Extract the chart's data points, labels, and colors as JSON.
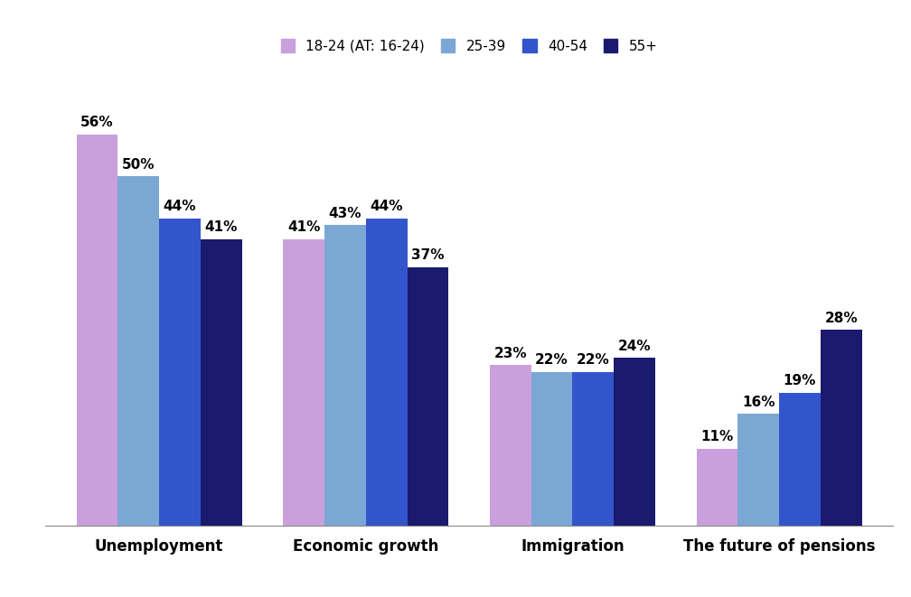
{
  "categories": [
    "Unemployment",
    "Economic growth",
    "Immigration",
    "The future of pensions"
  ],
  "series": [
    {
      "label": "18-24 (AT: 16-24)",
      "color": "#C9A0DC",
      "values": [
        56,
        41,
        23,
        11
      ]
    },
    {
      "label": "25-39",
      "color": "#7BA7D4",
      "values": [
        50,
        43,
        22,
        16
      ]
    },
    {
      "label": "40-54",
      "color": "#3355CC",
      "values": [
        44,
        44,
        22,
        19
      ]
    },
    {
      "label": "55+",
      "color": "#1A1A6E",
      "values": [
        41,
        37,
        24,
        28
      ]
    }
  ],
  "ylim": [
    0,
    65
  ],
  "bar_width": 0.2,
  "background_color": "#ffffff",
  "legend_fontsize": 11,
  "xlabel_fontsize": 12,
  "value_fontsize": 11,
  "figsize": [
    10.08,
    6.61
  ],
  "dpi": 100
}
